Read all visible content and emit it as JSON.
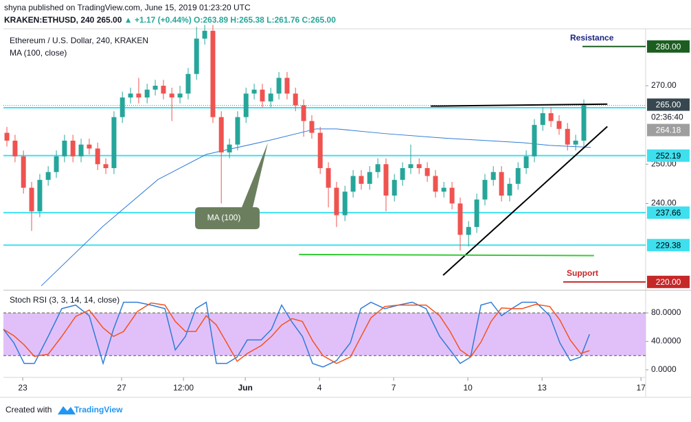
{
  "header": {
    "line1": "shyna published on TradingView.com, June 15, 2019 01:23:20 UTC",
    "symbol": "KRAKEN:ETHUSD, 240",
    "last": "265.00",
    "change": "▲ +1.17 (+0.44%)",
    "open": "O:263.89",
    "high": "H:265.38",
    "low": "L:261.76",
    "close": "C:265.00"
  },
  "footer": {
    "created": "Created with",
    "brand": "TradingView"
  },
  "chart_data": [
    {
      "type": "candlestick",
      "title": "Ethereum / U.S. Dollar, 240, KRAKEN",
      "up_color": "#26a69a",
      "down_color": "#ef5350",
      "xlim": [
        -0.78,
        25.19
      ],
      "ylim": [
        218.4,
        284.5
      ],
      "xticks": [
        {
          "value": 0,
          "label": "23"
        },
        {
          "value": 4,
          "label": "27"
        },
        {
          "value": 6.5,
          "label": "12:00"
        },
        {
          "value": 9,
          "label": "Jun"
        },
        {
          "value": 12,
          "label": "4"
        },
        {
          "value": 15,
          "label": "7"
        },
        {
          "value": 18,
          "label": "10"
        },
        {
          "value": 21,
          "label": "13"
        },
        {
          "value": 25,
          "label": "17"
        }
      ],
      "yticks": [
        {
          "value": 240,
          "label": "240.00"
        },
        {
          "value": 250,
          "label": "250.00"
        },
        {
          "value": 270,
          "label": "270.00"
        }
      ],
      "x": [
        -0.64,
        -0.31,
        0.03,
        0.36,
        0.69,
        1.03,
        1.36,
        1.69,
        2.03,
        2.36,
        2.69,
        3.03,
        3.36,
        3.69,
        4.03,
        4.36,
        4.69,
        5.03,
        5.36,
        5.69,
        6.03,
        6.36,
        6.69,
        7.03,
        7.36,
        7.69,
        8.03,
        8.36,
        8.69,
        9.03,
        9.36,
        9.69,
        10.03,
        10.36,
        10.69,
        11.03,
        11.36,
        11.69,
        12.03,
        12.36,
        12.69,
        13.03,
        13.36,
        13.69,
        14.03,
        14.36,
        14.69,
        15.03,
        15.36,
        15.69,
        16.03,
        16.36,
        16.69,
        17.03,
        17.36,
        17.69,
        18.03,
        18.36,
        18.69,
        19.03,
        19.36,
        19.69,
        20.03,
        20.36,
        20.69,
        21.03,
        21.36,
        21.69,
        22.03,
        22.36,
        22.69
      ],
      "open": [
        258,
        256,
        252,
        244,
        238,
        246,
        248,
        252,
        256,
        252,
        255,
        254,
        250,
        249,
        262,
        267,
        268,
        267,
        269,
        270,
        268,
        267,
        268,
        273,
        282,
        284,
        262,
        253,
        255,
        262,
        268,
        269,
        266,
        268,
        272,
        268,
        265,
        261,
        258,
        249,
        244,
        237,
        243,
        247,
        245,
        248,
        250,
        242,
        246,
        249,
        250,
        249,
        247,
        243,
        244,
        240,
        232,
        234,
        241,
        246,
        248,
        242,
        245,
        249,
        252,
        260,
        263,
        261,
        259,
        255,
        256
      ],
      "high": [
        259.5,
        257.5,
        253.5,
        245.5,
        247.5,
        249.5,
        253.5,
        257.5,
        257.5,
        256.5,
        256.5,
        255.5,
        251.5,
        263.5,
        268.5,
        269.5,
        272,
        270.5,
        271.5,
        271.5,
        269.5,
        270,
        274.5,
        285,
        285.5,
        285.5,
        263.5,
        256.5,
        263.5,
        269.5,
        270.5,
        270.5,
        269.5,
        273.5,
        273.5,
        269.5,
        266.5,
        262.5,
        259.5,
        250.5,
        245.5,
        244.5,
        248.5,
        248.5,
        249.5,
        251.5,
        251.5,
        247.5,
        250.5,
        255,
        251.5,
        250.5,
        248.5,
        245.5,
        245.5,
        241.5,
        235.5,
        242.5,
        247.5,
        249.5,
        249.5,
        246.5,
        250.5,
        253.5,
        261.5,
        264.5,
        264.5,
        262.5,
        260.5,
        257.5,
        266.5
      ],
      "low": [
        254.5,
        250.5,
        242.5,
        233,
        236.5,
        244.5,
        246.5,
        250.5,
        250.5,
        250.5,
        252.5,
        248.5,
        247.5,
        247.5,
        260.5,
        265.5,
        265.5,
        265.5,
        267.5,
        266.5,
        261,
        265.5,
        266.5,
        271.5,
        280.5,
        260.5,
        240,
        251.5,
        253.5,
        260.5,
        266.5,
        264.5,
        264.5,
        266.5,
        266.5,
        263.5,
        257,
        256.5,
        247.5,
        239,
        234,
        235.5,
        241.5,
        243.5,
        243.5,
        246.5,
        238,
        240.5,
        244.5,
        247.5,
        247.5,
        245.5,
        241.5,
        241.5,
        238.5,
        228,
        229,
        232.5,
        239.5,
        244.5,
        240.5,
        240.5,
        243.5,
        247.5,
        250.5,
        258.5,
        259.5,
        257.5,
        253.5,
        253.5,
        254.5
      ],
      "close": [
        256,
        252,
        244,
        238,
        246,
        248,
        252,
        256,
        252,
        255,
        254,
        250,
        249,
        262,
        267,
        268,
        267,
        269,
        270,
        268,
        267,
        268,
        273,
        282,
        284,
        262,
        253,
        255,
        262,
        268,
        269,
        266,
        268,
        272,
        268,
        265,
        261,
        258,
        249,
        244,
        237,
        243,
        247,
        245,
        248,
        250,
        242,
        246,
        249,
        250,
        249,
        247,
        243,
        244,
        240,
        232,
        234,
        241,
        246,
        248,
        242,
        245,
        249,
        252,
        260,
        263,
        261,
        259,
        255,
        256,
        265
      ],
      "ma": {
        "name": "MA (100, close)",
        "color": "#2e7bd6",
        "x": [
          0.75,
          3.25,
          5.47,
          7.42,
          9.92,
          11.86,
          12.69,
          14.64,
          17.14,
          20.19,
          21.31,
          22.97
        ],
        "values": [
          219,
          234.2,
          246.1,
          252.5,
          256,
          259,
          259,
          257.8,
          256.6,
          255.5,
          254.8,
          254.3
        ]
      },
      "ma_callout": "MA (100)",
      "levels_color": "#3ee0ef",
      "levels": [
        {
          "value": 264.4
        },
        {
          "value": 252.19,
          "label": "252.19"
        },
        {
          "value": 237.66,
          "label": "237.66"
        },
        {
          "value": 229.38,
          "label": "229.38"
        }
      ],
      "last_price": {
        "value": 265,
        "label": "265.00",
        "countdown": "02:36:40",
        "marker": "264.18"
      },
      "resistance": {
        "label": "Resistance",
        "value": 280,
        "price_label": "280.00",
        "color": "#1b5e20"
      },
      "support": {
        "label": "Support",
        "value": 220,
        "price_label": "220.00",
        "color": "#c62828"
      },
      "trendlines": [
        {
          "color": "#000000",
          "x": [
            16.5,
            23.64
          ],
          "y": [
            264.8,
            265.3
          ]
        },
        {
          "color": "#000000",
          "x": [
            17,
            23.64
          ],
          "y": [
            221.7,
            259.6
          ]
        },
        {
          "color": "#33cc33",
          "x": [
            11.17,
            23.1
          ],
          "y": [
            227,
            226.7
          ]
        }
      ]
    },
    {
      "type": "line",
      "title": "Stoch RSI (3, 3, 14, 14, close)",
      "xlim": [
        -0.78,
        25.19
      ],
      "ylim": [
        -10.6,
        109.9
      ],
      "yticks": [
        {
          "value": 0,
          "label": "0.0000"
        },
        {
          "value": 40,
          "label": "40.0000"
        },
        {
          "value": 80,
          "label": "80.0000"
        }
      ],
      "bands": [
        20,
        80
      ],
      "band_color": "#d9b0f7",
      "x": [
        -0.78,
        -0.36,
        0.06,
        0.47,
        1.03,
        1.58,
        2.14,
        2.69,
        3.25,
        3.67,
        4.08,
        4.64,
        5.19,
        5.75,
        6.17,
        6.58,
        7,
        7.42,
        7.83,
        8.25,
        8.67,
        9.08,
        9.64,
        10.06,
        10.47,
        10.89,
        11.31,
        11.72,
        12.14,
        12.69,
        13.25,
        13.67,
        14.08,
        14.64,
        15.19,
        15.75,
        16.31,
        16.86,
        17.28,
        17.69,
        18.11,
        18.53,
        18.94,
        19.36,
        19.78,
        20.19,
        20.75,
        21.31,
        21.72,
        22.14,
        22.56,
        22.92
      ],
      "series": [
        {
          "color": "#2e7bd6",
          "values": [
            57,
            38,
            9,
            9,
            47,
            86,
            91,
            76,
            9,
            57,
            95,
            95,
            91,
            86,
            28,
            47,
            86,
            95,
            9,
            9,
            18,
            42,
            42,
            57,
            91,
            67,
            47,
            9,
            4,
            13,
            38,
            86,
            95,
            86,
            91,
            95,
            86,
            47,
            28,
            9,
            18,
            91,
            95,
            76,
            86,
            95,
            95,
            76,
            38,
            13,
            18,
            50
          ]
        },
        {
          "color": "#f4511e",
          "values": [
            57,
            48,
            35,
            19,
            22,
            47,
            75,
            84,
            59,
            47,
            54,
            82,
            94,
            91,
            68,
            54,
            54,
            76,
            63,
            38,
            12,
            23,
            34,
            47,
            63,
            72,
            68,
            41,
            20,
            9,
            18,
            46,
            73,
            89,
            91,
            91,
            91,
            76,
            54,
            28,
            18,
            39,
            68,
            87,
            86,
            86,
            92,
            89,
            70,
            42,
            23,
            27
          ]
        }
      ]
    }
  ]
}
